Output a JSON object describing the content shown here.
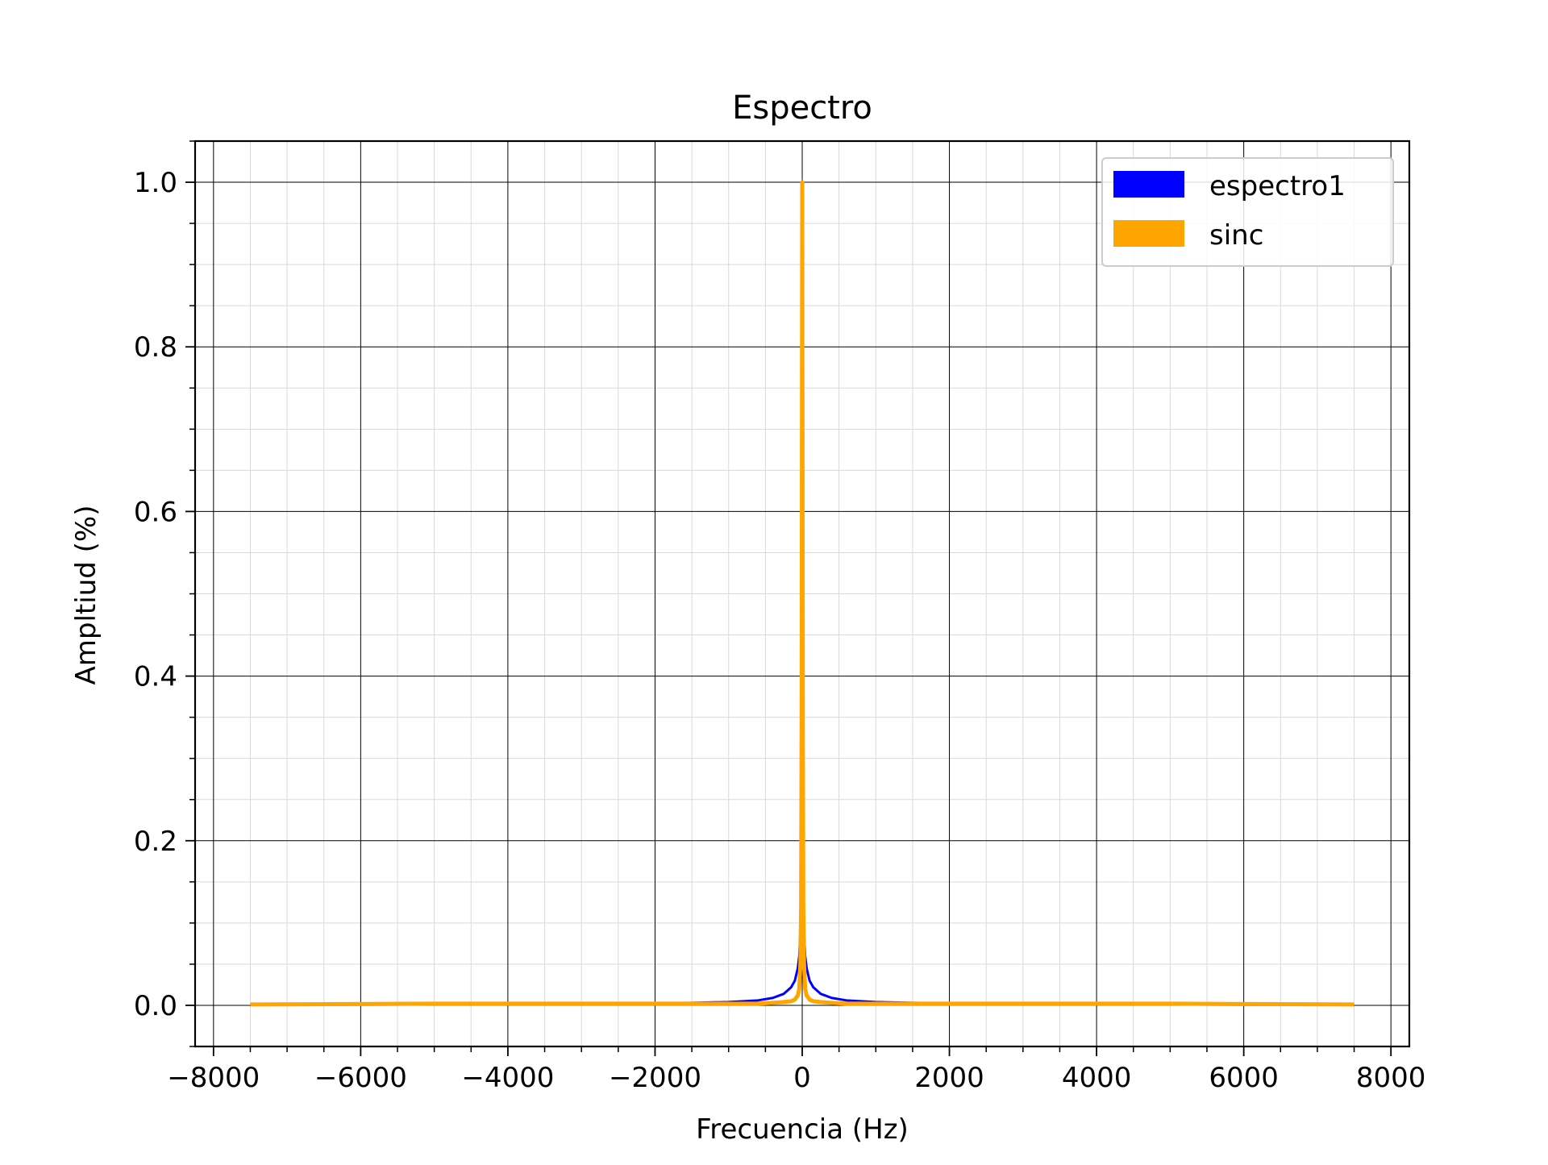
{
  "chart_data": {
    "type": "line",
    "title": "Espectro",
    "xlabel": "Frecuencia (Hz)",
    "ylabel": "Ampltiud (%)",
    "xlim": [
      -8250,
      8250
    ],
    "ylim": [
      -0.05,
      1.05
    ],
    "xticks": [
      -8000,
      -6000,
      -4000,
      -2000,
      0,
      2000,
      4000,
      6000,
      8000
    ],
    "xtick_labels": [
      "−8000",
      "−6000",
      "−4000",
      "−2000",
      "0",
      "2000",
      "4000",
      "6000",
      "8000"
    ],
    "yticks": [
      0.0,
      0.2,
      0.4,
      0.6,
      0.8,
      1.0
    ],
    "ytick_labels": [
      "0.0",
      "0.2",
      "0.4",
      "0.6",
      "0.8",
      "1.0"
    ],
    "grid": {
      "major": true,
      "minor": true
    },
    "legend_position": "top-right",
    "series": [
      {
        "name": "espectro1",
        "color": "#0000ff",
        "x": [
          -7500,
          -5000,
          -2500,
          -1500,
          -1000,
          -600,
          -400,
          -250,
          -150,
          -100,
          -60,
          -40,
          -20,
          -10,
          0,
          10,
          20,
          40,
          60,
          100,
          150,
          250,
          400,
          600,
          1000,
          1500,
          2500,
          5000,
          7500
        ],
        "y": [
          0.0005,
          0.001,
          0.002,
          0.003,
          0.004,
          0.006,
          0.009,
          0.014,
          0.022,
          0.03,
          0.045,
          0.06,
          0.1,
          0.22,
          0.25,
          0.22,
          0.1,
          0.06,
          0.045,
          0.03,
          0.022,
          0.014,
          0.009,
          0.006,
          0.004,
          0.003,
          0.002,
          0.001,
          0.0005
        ]
      },
      {
        "name": "sinc",
        "color": "#ffa500",
        "x": [
          -7500,
          -5000,
          -2500,
          -1500,
          -1000,
          -600,
          -400,
          -250,
          -150,
          -100,
          -60,
          -40,
          -25,
          -15,
          -8,
          0,
          8,
          15,
          25,
          40,
          60,
          100,
          150,
          250,
          400,
          600,
          1000,
          1500,
          2500,
          5000,
          7500
        ],
        "y": [
          0.001,
          0.002,
          0.002,
          0.002,
          0.002,
          0.002,
          0.003,
          0.004,
          0.005,
          0.007,
          0.012,
          0.02,
          0.05,
          0.12,
          0.35,
          1.0,
          0.35,
          0.12,
          0.05,
          0.02,
          0.012,
          0.007,
          0.005,
          0.004,
          0.003,
          0.002,
          0.002,
          0.002,
          0.002,
          0.002,
          0.001
        ]
      }
    ]
  }
}
